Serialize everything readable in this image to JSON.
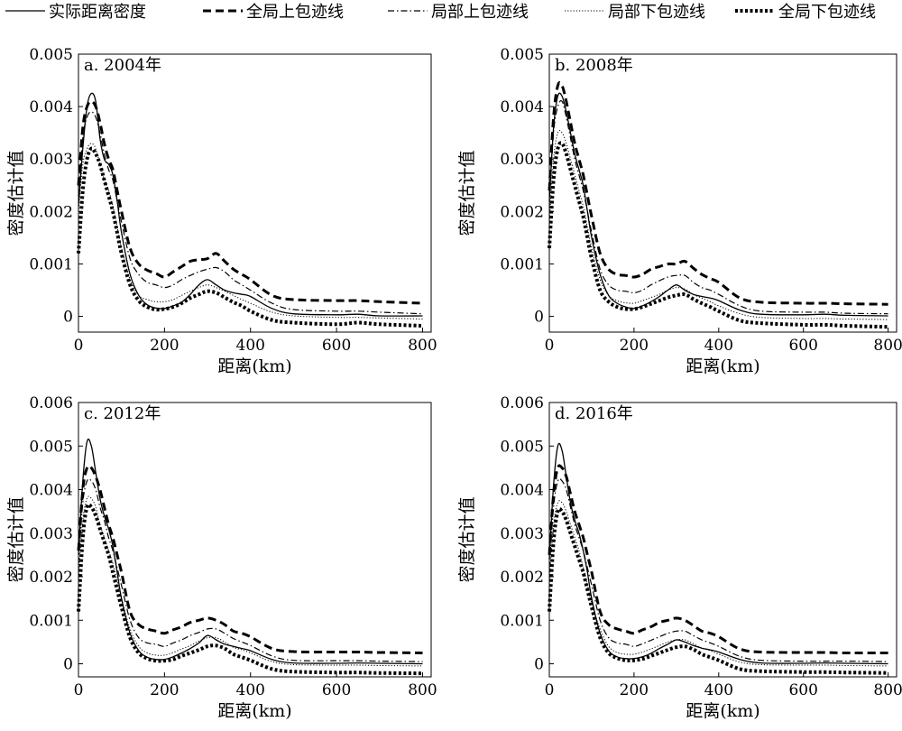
{
  "legend": [
    {
      "key": "actual",
      "label": "实际距离密度",
      "style": "solid"
    },
    {
      "key": "global_upper",
      "label": "全局上包迹线",
      "style": "dashed"
    },
    {
      "key": "local_upper",
      "label": "局部上包迹线",
      "style": "dashdot"
    },
    {
      "key": "local_lower",
      "label": "局部下包迹线",
      "style": "dotted"
    },
    {
      "key": "global_lower",
      "label": "全局下包迹线",
      "style": "heavy-dotted"
    }
  ],
  "chart_data": [
    {
      "type": "line",
      "title": "a. 2004年",
      "xlabel": "距离(km)",
      "ylabel": "密度估计值",
      "xlim": [
        0,
        820
      ],
      "ylim": [
        -0.0003,
        0.005
      ],
      "xticks": [
        0,
        200,
        400,
        600,
        800
      ],
      "yticks": [
        0,
        0.001,
        0.002,
        0.003,
        0.004,
        0.005
      ],
      "ytick_labels": [
        "0",
        "0.001",
        "0.002",
        "0.003",
        "0.004",
        "0.005"
      ],
      "x": [
        0,
        10,
        20,
        30,
        40,
        50,
        60,
        70,
        80,
        90,
        100,
        120,
        140,
        160,
        180,
        200,
        220,
        240,
        260,
        280,
        300,
        320,
        340,
        360,
        380,
        400,
        450,
        500,
        600,
        650,
        700,
        800
      ],
      "series": [
        {
          "key": "actual",
          "values": [
            0.0021,
            0.0032,
            0.004,
            0.00425,
            0.0041,
            0.0034,
            0.003,
            0.0029,
            0.0027,
            0.0022,
            0.0016,
            0.0008,
            0.0004,
            0.00022,
            0.00016,
            0.00015,
            0.0002,
            0.00027,
            0.00042,
            0.0006,
            0.0007,
            0.0006,
            0.0005,
            0.00045,
            0.00042,
            0.00038,
            0.00015,
            5e-05,
            3e-05,
            4e-05,
            1e-05,
            1e-05
          ]
        },
        {
          "key": "global_upper",
          "values": [
            0.0025,
            0.0036,
            0.004,
            0.0041,
            0.004,
            0.0037,
            0.0033,
            0.003,
            0.0028,
            0.0024,
            0.002,
            0.0013,
            0.001,
            0.00088,
            0.00082,
            0.00075,
            0.00085,
            0.00095,
            0.00105,
            0.00108,
            0.0011,
            0.0012,
            0.00105,
            0.0009,
            0.0008,
            0.0007,
            0.0004,
            0.00032,
            0.0003,
            0.0003,
            0.00028,
            0.00025
          ]
        },
        {
          "key": "local_upper",
          "values": [
            0.0023,
            0.0034,
            0.0038,
            0.0039,
            0.0038,
            0.0035,
            0.0031,
            0.0028,
            0.0026,
            0.0022,
            0.0018,
            0.0011,
            0.0008,
            0.00065,
            0.0006,
            0.00055,
            0.0006,
            0.0007,
            0.00078,
            0.00085,
            0.0009,
            0.00093,
            0.00085,
            0.0007,
            0.0006,
            0.0005,
            0.00025,
            0.00013,
            0.0001,
            0.0001,
            8e-05,
            5e-05
          ]
        },
        {
          "key": "local_lower",
          "values": [
            0.002,
            0.0029,
            0.0032,
            0.0033,
            0.0032,
            0.0029,
            0.0026,
            0.0024,
            0.0021,
            0.0017,
            0.0013,
            0.0007,
            0.0004,
            0.00032,
            0.00028,
            0.00028,
            0.00032,
            0.0004,
            0.00048,
            0.00055,
            0.0006,
            0.00055,
            0.00048,
            0.0004,
            0.00032,
            0.00025,
            8e-05,
            1e-05,
            -2e-05,
            -2e-05,
            -3e-05,
            -5e-05
          ]
        },
        {
          "key": "global_lower",
          "values": [
            0.0012,
            0.0024,
            0.003,
            0.0032,
            0.0031,
            0.0029,
            0.0026,
            0.0023,
            0.002,
            0.0016,
            0.0012,
            0.0006,
            0.0003,
            0.00018,
            0.00013,
            0.00014,
            0.00018,
            0.00025,
            0.00035,
            0.00042,
            0.00048,
            0.00045,
            0.00036,
            0.00027,
            0.0002,
            0.0001,
            -7e-05,
            -0.00012,
            -0.00015,
            -0.00012,
            -0.00015,
            -0.00018
          ]
        }
      ]
    },
    {
      "type": "line",
      "title": "b. 2008年",
      "xlabel": "距离(km)",
      "ylabel": "密度估计值",
      "xlim": [
        0,
        820
      ],
      "ylim": [
        -0.0003,
        0.005
      ],
      "xticks": [
        0,
        200,
        400,
        600,
        800
      ],
      "yticks": [
        0,
        0.001,
        0.002,
        0.003,
        0.004,
        0.005
      ],
      "ytick_labels": [
        "0",
        "0.001",
        "0.002",
        "0.003",
        "0.004",
        "0.005"
      ],
      "x": [
        0,
        10,
        20,
        30,
        40,
        50,
        60,
        70,
        80,
        90,
        100,
        120,
        140,
        160,
        180,
        200,
        220,
        240,
        260,
        280,
        300,
        320,
        340,
        360,
        380,
        400,
        450,
        500,
        600,
        650,
        700,
        800
      ],
      "series": [
        {
          "key": "actual",
          "values": [
            0.0022,
            0.0036,
            0.0042,
            0.0042,
            0.0039,
            0.0035,
            0.0031,
            0.0028,
            0.0025,
            0.002,
            0.0015,
            0.0008,
            0.0004,
            0.00025,
            0.00018,
            0.00015,
            0.0002,
            0.00028,
            0.00038,
            0.0005,
            0.0006,
            0.0005,
            0.00042,
            0.00038,
            0.00035,
            0.0003,
            0.00012,
            4e-05,
            3e-05,
            4e-05,
            2e-05,
            1e-05
          ]
        },
        {
          "key": "global_upper",
          "values": [
            0.0024,
            0.0038,
            0.0044,
            0.0044,
            0.0041,
            0.0037,
            0.0033,
            0.003,
            0.0027,
            0.0023,
            0.0019,
            0.0012,
            0.0009,
            0.0008,
            0.00078,
            0.00075,
            0.0008,
            0.0009,
            0.00095,
            0.001,
            0.001,
            0.00105,
            0.00092,
            0.0008,
            0.00072,
            0.00065,
            0.00035,
            0.00027,
            0.00025,
            0.00025,
            0.00024,
            0.00023
          ]
        },
        {
          "key": "local_upper",
          "values": [
            0.0021,
            0.0035,
            0.004,
            0.0041,
            0.0038,
            0.0034,
            0.003,
            0.0027,
            0.0024,
            0.002,
            0.0016,
            0.0009,
            0.0006,
            0.0005,
            0.00048,
            0.00045,
            0.0005,
            0.0006,
            0.00068,
            0.00075,
            0.00078,
            0.00078,
            0.00065,
            0.00055,
            0.0005,
            0.00042,
            0.0002,
            0.0001,
            8e-05,
            8e-05,
            6e-05,
            5e-05
          ]
        },
        {
          "key": "local_lower",
          "values": [
            0.0018,
            0.003,
            0.0035,
            0.0035,
            0.0033,
            0.003,
            0.0027,
            0.0024,
            0.0021,
            0.0017,
            0.0013,
            0.0007,
            0.0004,
            0.0003,
            0.00026,
            0.00025,
            0.0003,
            0.00036,
            0.00042,
            0.0005,
            0.00055,
            0.00052,
            0.00042,
            0.00035,
            0.00028,
            0.0002,
            5e-05,
            -2e-05,
            -4e-05,
            -4e-05,
            -5e-05,
            -6e-05
          ]
        },
        {
          "key": "global_lower",
          "values": [
            0.0013,
            0.0026,
            0.0032,
            0.0033,
            0.0031,
            0.0028,
            0.0025,
            0.0022,
            0.0019,
            0.0015,
            0.0011,
            0.0005,
            0.00028,
            0.00018,
            0.00014,
            0.00014,
            0.00018,
            0.00024,
            0.0003,
            0.00036,
            0.0004,
            0.00042,
            0.00033,
            0.00025,
            0.00018,
            0.0001,
            -8e-05,
            -0.00013,
            -0.00016,
            -0.00016,
            -0.00018,
            -0.0002
          ]
        }
      ]
    },
    {
      "type": "line",
      "title": "c. 2012年",
      "xlabel": "距离(km)",
      "ylabel": "密度估计值",
      "xlim": [
        0,
        820
      ],
      "ylim": [
        -0.0003,
        0.006
      ],
      "xticks": [
        0,
        200,
        400,
        600,
        800
      ],
      "yticks": [
        0,
        0.001,
        0.002,
        0.003,
        0.004,
        0.005,
        0.006
      ],
      "ytick_labels": [
        "0",
        "0.001",
        "0.002",
        "0.003",
        "0.004",
        "0.005",
        "0.006"
      ],
      "x": [
        0,
        10,
        20,
        30,
        40,
        50,
        60,
        70,
        80,
        90,
        100,
        120,
        140,
        160,
        180,
        200,
        220,
        240,
        260,
        280,
        300,
        320,
        340,
        360,
        380,
        400,
        450,
        500,
        600,
        650,
        700,
        800
      ],
      "series": [
        {
          "key": "actual",
          "values": [
            0.0025,
            0.0042,
            0.0051,
            0.005,
            0.0044,
            0.0038,
            0.0034,
            0.0031,
            0.0027,
            0.0021,
            0.0015,
            0.0007,
            0.0003,
            0.00015,
            0.0001,
            0.0001,
            0.00016,
            0.00025,
            0.00035,
            0.00048,
            0.00065,
            0.00055,
            0.00045,
            0.0004,
            0.00035,
            0.0003,
            0.0001,
            2e-05,
            1e-05,
            2e-05,
            1e-05,
            0.0
          ]
        },
        {
          "key": "global_upper",
          "values": [
            0.0026,
            0.004,
            0.0045,
            0.0045,
            0.0043,
            0.004,
            0.0036,
            0.0032,
            0.0029,
            0.0025,
            0.0021,
            0.0012,
            0.0009,
            0.0008,
            0.00075,
            0.0007,
            0.00078,
            0.00085,
            0.00095,
            0.001,
            0.00105,
            0.001,
            0.0009,
            0.00075,
            0.0007,
            0.00062,
            0.00035,
            0.00028,
            0.00027,
            0.00027,
            0.00026,
            0.00025
          ]
        },
        {
          "key": "local_upper",
          "values": [
            0.0023,
            0.0037,
            0.0042,
            0.0042,
            0.004,
            0.0036,
            0.0033,
            0.0029,
            0.0026,
            0.0022,
            0.0018,
            0.001,
            0.0006,
            0.00048,
            0.00045,
            0.0004,
            0.00048,
            0.00055,
            0.00065,
            0.00072,
            0.0008,
            0.0008,
            0.0007,
            0.00058,
            0.0005,
            0.00042,
            0.00018,
            8e-05,
            7e-05,
            7e-05,
            6e-05,
            5e-05
          ]
        },
        {
          "key": "local_lower",
          "values": [
            0.002,
            0.0033,
            0.0038,
            0.0038,
            0.0036,
            0.0032,
            0.0029,
            0.0026,
            0.0023,
            0.0019,
            0.0015,
            0.0008,
            0.0004,
            0.00025,
            0.0002,
            0.0002,
            0.00026,
            0.00034,
            0.00042,
            0.00052,
            0.0006,
            0.0006,
            0.0005,
            0.00038,
            0.00032,
            0.00025,
            5e-05,
            -2e-05,
            -3e-05,
            -3e-05,
            -4e-05,
            -5e-05
          ]
        },
        {
          "key": "global_lower",
          "values": [
            0.0012,
            0.0029,
            0.0036,
            0.0036,
            0.0034,
            0.0031,
            0.0028,
            0.0025,
            0.0021,
            0.0017,
            0.0013,
            0.0006,
            0.00025,
            0.00012,
            7e-05,
            7e-05,
            0.0001,
            0.00018,
            0.00025,
            0.00032,
            0.0004,
            0.00042,
            0.00035,
            0.00022,
            0.00015,
            8e-05,
            -0.00012,
            -0.00018,
            -0.0002,
            -0.0002,
            -0.00021,
            -0.00022
          ]
        }
      ]
    },
    {
      "type": "line",
      "title": "d. 2016年",
      "xlabel": "距离(km)",
      "ylabel": "密度估计值",
      "xlim": [
        0,
        820
      ],
      "ylim": [
        -0.0003,
        0.006
      ],
      "xticks": [
        0,
        200,
        400,
        600,
        800
      ],
      "yticks": [
        0,
        0.001,
        0.002,
        0.003,
        0.004,
        0.005,
        0.006
      ],
      "ytick_labels": [
        "0",
        "0.001",
        "0.002",
        "0.003",
        "0.004",
        "0.005",
        "0.006"
      ],
      "x": [
        0,
        10,
        20,
        30,
        40,
        50,
        60,
        70,
        80,
        90,
        100,
        120,
        140,
        160,
        180,
        200,
        220,
        240,
        260,
        280,
        300,
        320,
        340,
        360,
        380,
        400,
        450,
        500,
        600,
        650,
        700,
        800
      ],
      "series": [
        {
          "key": "actual",
          "values": [
            0.0024,
            0.0041,
            0.005,
            0.0049,
            0.0043,
            0.0037,
            0.0033,
            0.003,
            0.0026,
            0.0021,
            0.0015,
            0.0007,
            0.0003,
            0.00016,
            0.00012,
            0.00012,
            0.00016,
            0.00024,
            0.00035,
            0.00045,
            0.00055,
            0.0005,
            0.00042,
            0.00036,
            0.00032,
            0.00027,
            0.0001,
            2e-05,
            1e-05,
            2e-05,
            1e-05,
            0.0
          ]
        },
        {
          "key": "global_upper",
          "values": [
            0.0025,
            0.0039,
            0.0045,
            0.0045,
            0.0043,
            0.0039,
            0.0035,
            0.0032,
            0.0029,
            0.0025,
            0.0021,
            0.0012,
            0.0009,
            0.0008,
            0.00075,
            0.0007,
            0.00078,
            0.00085,
            0.00095,
            0.001,
            0.00105,
            0.001,
            0.00088,
            0.00075,
            0.0007,
            0.00062,
            0.00034,
            0.00027,
            0.00026,
            0.00026,
            0.00025,
            0.00025
          ]
        },
        {
          "key": "local_upper",
          "values": [
            0.0022,
            0.0036,
            0.0042,
            0.0042,
            0.004,
            0.0036,
            0.0032,
            0.0029,
            0.0026,
            0.0022,
            0.0018,
            0.001,
            0.0006,
            0.00048,
            0.00045,
            0.0004,
            0.00046,
            0.00054,
            0.00062,
            0.0007,
            0.00075,
            0.00075,
            0.00065,
            0.00055,
            0.00048,
            0.0004,
            0.00017,
            8e-05,
            6e-05,
            6e-05,
            6e-05,
            5e-05
          ]
        },
        {
          "key": "local_lower",
          "values": [
            0.0019,
            0.0032,
            0.0037,
            0.0037,
            0.0035,
            0.0032,
            0.0029,
            0.0026,
            0.0022,
            0.0018,
            0.0014,
            0.0008,
            0.0004,
            0.00026,
            0.00022,
            0.00022,
            0.00027,
            0.00034,
            0.00042,
            0.0005,
            0.00055,
            0.00055,
            0.00046,
            0.00036,
            0.0003,
            0.00022,
            4e-05,
            -2e-05,
            -3e-05,
            -3e-05,
            -4e-05,
            -5e-05
          ]
        },
        {
          "key": "global_lower",
          "values": [
            0.0012,
            0.0028,
            0.0035,
            0.0035,
            0.0033,
            0.003,
            0.0027,
            0.0024,
            0.0021,
            0.0017,
            0.0013,
            0.0006,
            0.00025,
            0.00013,
            8e-05,
            8e-05,
            0.00011,
            0.00018,
            0.00025,
            0.00032,
            0.00038,
            0.0004,
            0.00033,
            0.00022,
            0.00015,
            8e-05,
            -0.00012,
            -0.00017,
            -0.00019,
            -0.00019,
            -0.0002,
            -0.00021
          ]
        }
      ]
    }
  ]
}
